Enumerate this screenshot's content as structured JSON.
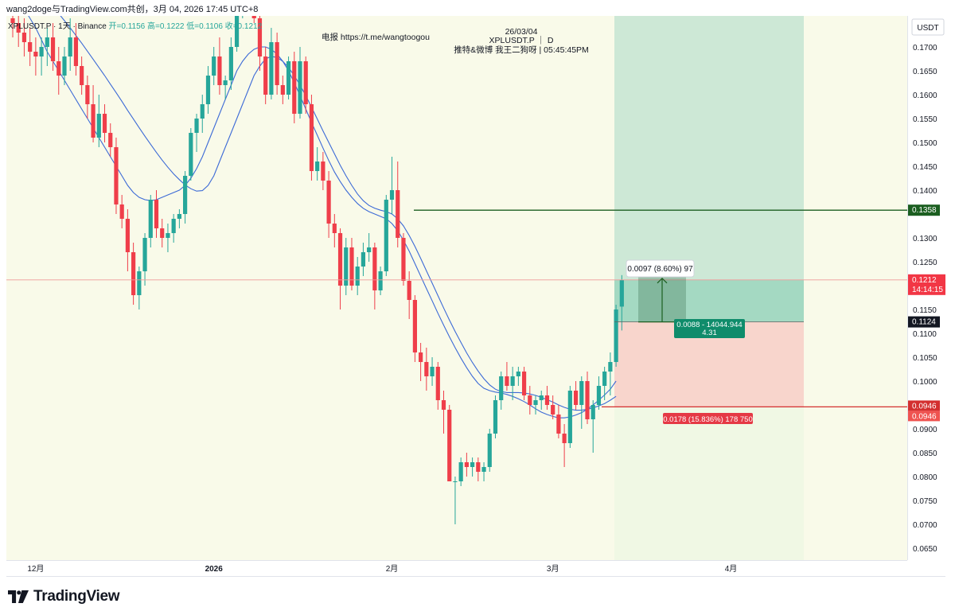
{
  "header": {
    "author_line": "wang2doge与TradingView.com共创，3月 04, 2026 17:45 UTC+8"
  },
  "chart_data": {
    "type": "candlestick",
    "symbol_line": "XPLUSDT.P · 1天 · Binance",
    "ohlc": {
      "open_label": "开=0.1156",
      "high_label": "高=0.1222",
      "low_label": "低=0.1106",
      "close_label": "收=0.1212"
    },
    "watermark": {
      "date": "26/03/04",
      "symbol": "XPLUSDT.P ｜ D",
      "telegram": "电报 https://t.me/wangtoogou",
      "social": "推特&微博 我王二狗呀 | 05:45:45PM"
    },
    "currency": "USDT",
    "ylim": [
      0.0625,
      0.1765
    ],
    "y_ticks": [
      "0.1700",
      "0.1650",
      "0.1600",
      "0.1550",
      "0.1500",
      "0.1450",
      "0.1400",
      "0.1300",
      "0.1250",
      "0.1150",
      "0.1100",
      "0.1050",
      "0.1000",
      "0.0900",
      "0.0850",
      "0.0800",
      "0.0750",
      "0.0700",
      "0.0650"
    ],
    "x_ticks": [
      {
        "label": "12月",
        "day": 4
      },
      {
        "label": "2026",
        "day": 35
      },
      {
        "label": "2月",
        "day": 66
      },
      {
        "label": "3月",
        "day": 94
      },
      {
        "label": "4月",
        "day": 125
      }
    ],
    "candles": [
      [
        0.176,
        0.179,
        0.172,
        0.175
      ],
      [
        0.175,
        0.178,
        0.17,
        0.173
      ],
      [
        0.173,
        0.176,
        0.168,
        0.171
      ],
      [
        0.171,
        0.174,
        0.166,
        0.169
      ],
      [
        0.169,
        0.172,
        0.164,
        0.168
      ],
      [
        0.168,
        0.172,
        0.164,
        0.17
      ],
      [
        0.17,
        0.174,
        0.166,
        0.172
      ],
      [
        0.172,
        0.175,
        0.165,
        0.167
      ],
      [
        0.167,
        0.17,
        0.16,
        0.164
      ],
      [
        0.164,
        0.17,
        0.162,
        0.168
      ],
      [
        0.168,
        0.176,
        0.165,
        0.172
      ],
      [
        0.172,
        0.175,
        0.164,
        0.166
      ],
      [
        0.166,
        0.168,
        0.16,
        0.162
      ],
      [
        0.162,
        0.164,
        0.155,
        0.158
      ],
      [
        0.158,
        0.162,
        0.15,
        0.151
      ],
      [
        0.151,
        0.16,
        0.149,
        0.156
      ],
      [
        0.156,
        0.158,
        0.15,
        0.152
      ],
      [
        0.152,
        0.154,
        0.147,
        0.149
      ],
      [
        0.149,
        0.151,
        0.135,
        0.137
      ],
      [
        0.137,
        0.139,
        0.132,
        0.134
      ],
      [
        0.134,
        0.136,
        0.123,
        0.127
      ],
      [
        0.127,
        0.129,
        0.116,
        0.118
      ],
      [
        0.118,
        0.124,
        0.115,
        0.123
      ],
      [
        0.123,
        0.131,
        0.12,
        0.13
      ],
      [
        0.13,
        0.139,
        0.128,
        0.138
      ],
      [
        0.138,
        0.14,
        0.13,
        0.132
      ],
      [
        0.132,
        0.134,
        0.128,
        0.13
      ],
      [
        0.13,
        0.133,
        0.127,
        0.131
      ],
      [
        0.131,
        0.135,
        0.129,
        0.134
      ],
      [
        0.134,
        0.136,
        0.132,
        0.135
      ],
      [
        0.135,
        0.144,
        0.133,
        0.143
      ],
      [
        0.143,
        0.153,
        0.142,
        0.152
      ],
      [
        0.152,
        0.156,
        0.148,
        0.155
      ],
      [
        0.155,
        0.16,
        0.152,
        0.158
      ],
      [
        0.158,
        0.166,
        0.156,
        0.164
      ],
      [
        0.164,
        0.17,
        0.162,
        0.168
      ],
      [
        0.168,
        0.172,
        0.16,
        0.162
      ],
      [
        0.162,
        0.164,
        0.159,
        0.163
      ],
      [
        0.163,
        0.172,
        0.161,
        0.17
      ],
      [
        0.17,
        0.18,
        0.169,
        0.179
      ],
      [
        0.179,
        0.182,
        0.176,
        0.18
      ],
      [
        0.18,
        0.183,
        0.178,
        0.181
      ],
      [
        0.181,
        0.183,
        0.175,
        0.176
      ],
      [
        0.176,
        0.178,
        0.165,
        0.168
      ],
      [
        0.168,
        0.17,
        0.158,
        0.16
      ],
      [
        0.16,
        0.174,
        0.159,
        0.171
      ],
      [
        0.171,
        0.173,
        0.16,
        0.162
      ],
      [
        0.162,
        0.164,
        0.158,
        0.16
      ],
      [
        0.16,
        0.168,
        0.159,
        0.167
      ],
      [
        0.167,
        0.169,
        0.154,
        0.156
      ],
      [
        0.156,
        0.17,
        0.155,
        0.167
      ],
      [
        0.167,
        0.168,
        0.156,
        0.158
      ],
      [
        0.158,
        0.16,
        0.142,
        0.144
      ],
      [
        0.144,
        0.149,
        0.142,
        0.146
      ],
      [
        0.146,
        0.148,
        0.14,
        0.142
      ],
      [
        0.142,
        0.144,
        0.13,
        0.133
      ],
      [
        0.133,
        0.135,
        0.128,
        0.131
      ],
      [
        0.131,
        0.132,
        0.115,
        0.12
      ],
      [
        0.12,
        0.13,
        0.118,
        0.128
      ],
      [
        0.128,
        0.13,
        0.119,
        0.12
      ],
      [
        0.12,
        0.126,
        0.118,
        0.124
      ],
      [
        0.124,
        0.129,
        0.122,
        0.127
      ],
      [
        0.127,
        0.131,
        0.125,
        0.128
      ],
      [
        0.128,
        0.129,
        0.115,
        0.119
      ],
      [
        0.119,
        0.124,
        0.118,
        0.123
      ],
      [
        0.123,
        0.139,
        0.122,
        0.138
      ],
      [
        0.138,
        0.147,
        0.135,
        0.14
      ],
      [
        0.14,
        0.146,
        0.128,
        0.13
      ],
      [
        0.13,
        0.131,
        0.12,
        0.121
      ],
      [
        0.121,
        0.123,
        0.113,
        0.117
      ],
      [
        0.117,
        0.118,
        0.104,
        0.106
      ],
      [
        0.106,
        0.108,
        0.1,
        0.104
      ],
      [
        0.104,
        0.107,
        0.098,
        0.101
      ],
      [
        0.101,
        0.105,
        0.099,
        0.103
      ],
      [
        0.103,
        0.104,
        0.094,
        0.096
      ],
      [
        0.096,
        0.098,
        0.089,
        0.094
      ],
      [
        0.094,
        0.095,
        0.079,
        0.079
      ],
      [
        0.079,
        0.08,
        0.07,
        0.079
      ],
      [
        0.079,
        0.084,
        0.078,
        0.083
      ],
      [
        0.083,
        0.085,
        0.08,
        0.082
      ],
      [
        0.082,
        0.084,
        0.08,
        0.083
      ],
      [
        0.083,
        0.084,
        0.079,
        0.081
      ],
      [
        0.081,
        0.083,
        0.079,
        0.082
      ],
      [
        0.082,
        0.09,
        0.081,
        0.089
      ],
      [
        0.089,
        0.097,
        0.088,
        0.096
      ],
      [
        0.096,
        0.102,
        0.094,
        0.101
      ],
      [
        0.101,
        0.104,
        0.098,
        0.099
      ],
      [
        0.099,
        0.103,
        0.096,
        0.101
      ],
      [
        0.101,
        0.103,
        0.099,
        0.102
      ],
      [
        0.102,
        0.103,
        0.096,
        0.097
      ],
      [
        0.097,
        0.099,
        0.093,
        0.095
      ],
      [
        0.095,
        0.097,
        0.093,
        0.096
      ],
      [
        0.096,
        0.098,
        0.094,
        0.097
      ],
      [
        0.097,
        0.099,
        0.094,
        0.095
      ],
      [
        0.095,
        0.097,
        0.092,
        0.093
      ],
      [
        0.093,
        0.095,
        0.088,
        0.089
      ],
      [
        0.089,
        0.091,
        0.082,
        0.087
      ],
      [
        0.087,
        0.099,
        0.086,
        0.098
      ],
      [
        0.098,
        0.1,
        0.094,
        0.095
      ],
      [
        0.095,
        0.101,
        0.09,
        0.1
      ],
      [
        0.1,
        0.102,
        0.091,
        0.092
      ],
      [
        0.092,
        0.096,
        0.085,
        0.095
      ],
      [
        0.095,
        0.101,
        0.094,
        0.099
      ],
      [
        0.099,
        0.103,
        0.096,
        0.102
      ],
      [
        0.102,
        0.106,
        0.097,
        0.104
      ],
      [
        0.104,
        0.116,
        0.103,
        0.115
      ],
      [
        0.1156,
        0.1222,
        0.1106,
        0.1212
      ]
    ],
    "ma_series": [
      {
        "values": [
          0.186,
          0.1852,
          0.1843,
          0.1833,
          0.1822,
          0.181,
          0.1797,
          0.1784,
          0.177,
          0.1755,
          0.174,
          0.1724,
          0.1708,
          0.1691,
          0.1674,
          0.1657,
          0.164,
          0.1622,
          0.1604,
          0.1586,
          0.1567,
          0.1549,
          0.1531,
          0.1513,
          0.1496,
          0.1479,
          0.1463,
          0.1448,
          0.1434,
          0.1422,
          0.1411,
          0.1403,
          0.1398,
          0.1399,
          0.141,
          0.143,
          0.146,
          0.149,
          0.152,
          0.155,
          0.158,
          0.161,
          0.164,
          0.166,
          0.1675,
          0.168,
          0.1678,
          0.167,
          0.1657,
          0.164,
          0.162,
          0.1598,
          0.1574,
          0.1549,
          0.1524,
          0.15,
          0.1476,
          0.1452,
          0.143,
          0.141,
          0.1392,
          0.1378,
          0.1368,
          0.1362,
          0.1358,
          0.1355,
          0.135,
          0.134,
          0.1325,
          0.1305,
          0.1282,
          0.1257,
          0.1231,
          0.1205,
          0.1179,
          0.1153,
          0.1128,
          0.1104,
          0.1081,
          0.1059,
          0.1039,
          0.1021,
          0.1005,
          0.0992,
          0.0983,
          0.0978,
          0.0976,
          0.0976,
          0.0976,
          0.0975,
          0.0973,
          0.097,
          0.0966,
          0.0961,
          0.0956,
          0.095,
          0.0945,
          0.0941,
          0.0939,
          0.0939,
          0.0941,
          0.0944,
          0.0948,
          0.0953,
          0.096,
          0.0968
        ]
      },
      {
        "values": [
          0.182,
          0.18,
          0.178,
          0.176,
          0.174,
          0.1715,
          0.169,
          0.167,
          0.165,
          0.163,
          0.161,
          0.159,
          0.157,
          0.155,
          0.153,
          0.151,
          0.149,
          0.147,
          0.145,
          0.143,
          0.141,
          0.1395,
          0.1385,
          0.138,
          0.1378,
          0.138,
          0.1385,
          0.139,
          0.1395,
          0.14,
          0.141,
          0.1425,
          0.1445,
          0.147,
          0.15,
          0.153,
          0.156,
          0.159,
          0.162,
          0.165,
          0.167,
          0.1685,
          0.1695,
          0.17,
          0.17,
          0.1695,
          0.1685,
          0.167,
          0.165,
          0.1625,
          0.1598,
          0.157,
          0.1542,
          0.1515,
          0.1488,
          0.1462,
          0.1438,
          0.1418,
          0.14,
          0.1385,
          0.1372,
          0.1362,
          0.1355,
          0.135,
          0.1345,
          0.134,
          0.133,
          0.1315,
          0.1295,
          0.1272,
          0.1246,
          0.122,
          0.1194,
          0.1168,
          0.1142,
          0.1117,
          0.1093,
          0.107,
          0.1048,
          0.1028,
          0.101,
          0.0995,
          0.0985,
          0.098,
          0.0977,
          0.0975,
          0.0972,
          0.0968,
          0.0963,
          0.0957,
          0.095,
          0.0942,
          0.0935,
          0.093,
          0.0926,
          0.0923,
          0.0923,
          0.0925,
          0.0929,
          0.0934,
          0.0941,
          0.095,
          0.096,
          0.0971,
          0.0983,
          0.1
        ]
      }
    ],
    "position": {
      "entry": 0.1124,
      "target": 0.1358,
      "stop": 0.0946,
      "target_label": "0.1358",
      "entry_label": "0.1124",
      "stop_label": "0.0946",
      "stop_label_2": "0.0946",
      "stop_info": "0.0178 (15.836%) 178 750",
      "entry_info_1": "0.0088 - 14044.944",
      "entry_info_2": "4.31",
      "measure_label": "0.0097 (8.60%) 97"
    },
    "current_price": {
      "price_label": "0.1212",
      "countdown": "14:14:15",
      "value": 0.1212
    }
  },
  "footer": {
    "brand": "TradingView"
  },
  "colors": {
    "up": "#26a69a",
    "up_dark": "#0f8c6b",
    "down": "#ef3e4a",
    "ma": "#3c6ad6",
    "plot_bg": "#f9fae9",
    "highlight_band": "#f0f8e4",
    "target_zone": "#cde8d6",
    "entry_zone": "#a4d9c2",
    "stop_zone": "#f8d5cc",
    "target_line": "#1b5e20",
    "stop_line": "#d32f2f",
    "current_line": "#ef9a9a"
  }
}
